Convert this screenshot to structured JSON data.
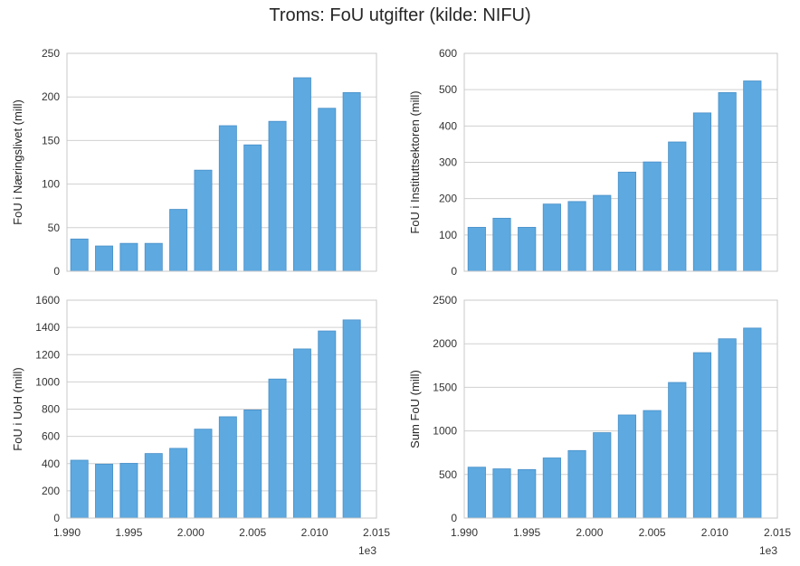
{
  "title": "Troms: FoU utgifter (kilde: NIFU)",
  "bar_color": "#5DA9E0",
  "bar_edge": "#4A90C8",
  "chart_data": [
    {
      "type": "bar",
      "ylabel": "FoU i Næringslivet (mill)",
      "x": [
        1991,
        1993,
        1995,
        1997,
        1999,
        2001,
        2003,
        2005,
        2007,
        2009,
        2011,
        2013
      ],
      "values": [
        37,
        29,
        32,
        32,
        71,
        116,
        167,
        145,
        172,
        222,
        187,
        205
      ],
      "ylim": [
        0,
        250
      ],
      "yticks": [
        "0",
        "50",
        "100",
        "150",
        "200",
        "250"
      ],
      "xlim": [
        1990,
        2015
      ],
      "xticks": [],
      "xoffset": ""
    },
    {
      "type": "bar",
      "ylabel": "FoU i Instituttsektoren (mill)",
      "x": [
        1991,
        1993,
        1995,
        1997,
        1999,
        2001,
        2003,
        2005,
        2007,
        2009,
        2011,
        2013
      ],
      "values": [
        121,
        146,
        121,
        185,
        192,
        209,
        273,
        301,
        356,
        436,
        492,
        524
      ],
      "ylim": [
        0,
        600
      ],
      "yticks": [
        "0",
        "100",
        "200",
        "300",
        "400",
        "500",
        "600"
      ],
      "xlim": [
        1990,
        2015
      ],
      "xticks": [],
      "xoffset": ""
    },
    {
      "type": "bar",
      "ylabel": "FoU i UoH (mill)",
      "x": [
        1991,
        1993,
        1995,
        1997,
        1999,
        2001,
        2003,
        2005,
        2007,
        2009,
        2011,
        2013
      ],
      "values": [
        425,
        396,
        402,
        474,
        512,
        653,
        744,
        794,
        1021,
        1242,
        1374,
        1455
      ],
      "ylim": [
        0,
        1600
      ],
      "yticks": [
        "0",
        "200",
        "400",
        "600",
        "800",
        "1000",
        "1200",
        "1400",
        "1600"
      ],
      "xlim": [
        1990,
        2015
      ],
      "xticks": [
        "1.990",
        "1.995",
        "2.000",
        "2.005",
        "2.010",
        "2.015"
      ],
      "xoffset": "1e3"
    },
    {
      "type": "bar",
      "ylabel": "Sum FoU (mill)",
      "x": [
        1991,
        1993,
        1995,
        1997,
        1999,
        2001,
        2003,
        2005,
        2007,
        2009,
        2011,
        2013
      ],
      "values": [
        584,
        565,
        557,
        690,
        775,
        980,
        1183,
        1234,
        1556,
        1898,
        2057,
        2180
      ],
      "ylim": [
        0,
        2500
      ],
      "yticks": [
        "0",
        "500",
        "1000",
        "1500",
        "2000",
        "2500"
      ],
      "xlim": [
        1990,
        2015
      ],
      "xticks": [
        "1.990",
        "1.995",
        "2.000",
        "2.005",
        "2.010",
        "2.015"
      ],
      "xoffset": "1e3"
    }
  ]
}
